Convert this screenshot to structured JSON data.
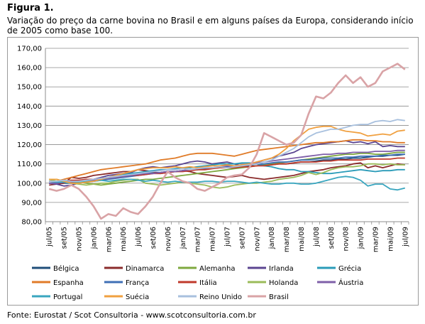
{
  "figure_label": "Figura 1.",
  "caption": "Variação do preço da carne bovina no Brasil e em alguns países da Europa, considerando início de 2005 como base 100.",
  "source": "Fonte: Eurostat / Scot Consultoria - www.scotconsultoria.com.br",
  "chart_data": {
    "type": "line",
    "title": "",
    "xlabel": "",
    "ylabel": "",
    "ylim": [
      80,
      170
    ],
    "y_ticks": [
      "80,00",
      "90,00",
      "100,00",
      "110,00",
      "120,00",
      "130,00",
      "140,00",
      "150,00",
      "160,00",
      "170,00"
    ],
    "x": [
      "jul/05",
      "ago/05",
      "set/05",
      "out/05",
      "nov/05",
      "dez/05",
      "jan/06",
      "fev/06",
      "mar/06",
      "abr/06",
      "mai/06",
      "jun/06",
      "jul/06",
      "ago/06",
      "set/06",
      "out/06",
      "nov/06",
      "dez/06",
      "jan/07",
      "fev/07",
      "mar/07",
      "abr/07",
      "mai/07",
      "jun/07",
      "jul/07",
      "ago/07",
      "set/07",
      "out/07",
      "nov/07",
      "dez/07",
      "jan/08",
      "fev/08",
      "mar/08",
      "abr/08",
      "mai/08",
      "jun/08",
      "jul/08",
      "ago/08",
      "set/08",
      "out/08",
      "nov/08",
      "dez/08",
      "jan/09",
      "fev/09",
      "mar/09",
      "abr/09",
      "mai/09",
      "jun/09",
      "jul/09"
    ],
    "x_tick_labels": [
      "jul/05",
      "set/05",
      "nov/05",
      "jan/06",
      "mar/06",
      "mai/06",
      "jul/06",
      "set/06",
      "nov/06",
      "jan/07",
      "mar/07",
      "mai/07",
      "jul/07",
      "set/07",
      "nov/07",
      "jan/08",
      "mar/08",
      "mai/08",
      "jul/08",
      "set/08",
      "nov/08",
      "jan/09",
      "mar/09",
      "mai/09",
      "jul/09"
    ],
    "grid": true,
    "legend_position": "bottom",
    "series": [
      {
        "name": "Bélgica",
        "color": "#1f4e79",
        "values": [
          100,
          100,
          100,
          100,
          100.5,
          101,
          101.5,
          102,
          102.5,
          103,
          103.5,
          104,
          104.5,
          105,
          105.5,
          105.5,
          106,
          106,
          106.5,
          107,
          107,
          107.5,
          108,
          108,
          108,
          108.5,
          108.5,
          109,
          109,
          109.5,
          109.5,
          110,
          110,
          110.5,
          111,
          111,
          111.5,
          112,
          112,
          112.5,
          112.5,
          113,
          113,
          113.5,
          114,
          114,
          114.5,
          114.5,
          115
        ]
      },
      {
        "name": "Dinamarca",
        "color": "#8b2c2c",
        "values": [
          99,
          99.5,
          100,
          103,
          102.5,
          103,
          104,
          104.5,
          105,
          105.5,
          106,
          106,
          107,
          106.5,
          106,
          105,
          105.5,
          106,
          106.5,
          106,
          105,
          104.5,
          104,
          103.5,
          103,
          103.5,
          104,
          103,
          102.5,
          102,
          102.5,
          103,
          103.5,
          104,
          105,
          106,
          106.5,
          107,
          108,
          108.5,
          109,
          110,
          110.5,
          108,
          109,
          108,
          109,
          110,
          109.5
        ]
      },
      {
        "name": "Alemanha",
        "color": "#7ea83f",
        "values": [
          102,
          102,
          101,
          101,
          100.5,
          100,
          99.5,
          99,
          99.5,
          100,
          100.5,
          101,
          101.5,
          102,
          102,
          102.5,
          103,
          103.5,
          104,
          104.5,
          105,
          105.5,
          106,
          106.5,
          107,
          107.5,
          108,
          108.5,
          109,
          109.5,
          110,
          110.5,
          111,
          111.5,
          112,
          112.5,
          113,
          113.5,
          114,
          114.5,
          115,
          115,
          115.5,
          115.5,
          115,
          115,
          115.5,
          116,
          116
        ]
      },
      {
        "name": "Irlanda",
        "color": "#5b4591",
        "values": [
          100,
          99.5,
          98.5,
          99,
          100,
          101,
          102,
          103,
          104,
          104.5,
          105,
          105.5,
          107,
          108,
          108.5,
          108,
          108.5,
          109,
          110,
          111,
          111.5,
          111,
          110,
          110.5,
          111,
          110,
          109,
          110,
          111,
          112,
          113,
          114,
          115,
          116,
          118,
          119,
          120,
          120.5,
          121,
          121.5,
          122,
          121,
          121.5,
          120.5,
          121.5,
          119,
          119.5,
          119,
          119
        ]
      },
      {
        "name": "Grécia",
        "color": "#2a9bb8",
        "values": [
          101,
          101,
          101.5,
          101,
          101,
          101.5,
          102,
          102.5,
          103,
          104,
          104.5,
          105,
          105.5,
          106,
          106.5,
          107,
          107,
          107.5,
          108,
          108,
          108.5,
          109,
          109.5,
          110,
          110,
          110,
          110.5,
          110.5,
          110,
          109,
          108.5,
          107.5,
          107,
          107,
          106,
          106,
          105.5,
          105,
          105,
          105.5,
          106,
          106.5,
          107,
          106.5,
          106,
          106.5,
          106.5,
          107,
          107
        ]
      },
      {
        "name": "Espanha",
        "color": "#e07b28",
        "values": [
          101,
          101,
          102,
          103,
          104,
          105,
          106,
          107,
          107.5,
          108,
          108.5,
          109,
          109.5,
          110,
          111,
          112,
          112.5,
          113,
          114,
          115,
          115.5,
          115.5,
          115.5,
          115,
          114.5,
          114,
          115,
          116,
          117,
          117.5,
          118,
          118.5,
          119,
          119.5,
          120,
          120.5,
          121,
          121,
          121.5,
          121.5,
          122,
          122.5,
          122.5,
          122,
          122,
          121.5,
          121.5,
          121,
          121
        ]
      },
      {
        "name": "França",
        "color": "#3f6fb5",
        "values": [
          100,
          100,
          100.5,
          100,
          100,
          100.5,
          101,
          101.5,
          102,
          102.5,
          103,
          103.5,
          104,
          104.5,
          105,
          105.5,
          106,
          106,
          106.5,
          107,
          107,
          107.5,
          108,
          108,
          108.5,
          109,
          109,
          109.5,
          110,
          110,
          110.5,
          111,
          111,
          111.5,
          112,
          112,
          112.5,
          113,
          113,
          113,
          113.5,
          113.5,
          114,
          114,
          114,
          114.5,
          114.5,
          115,
          115
        ]
      },
      {
        "name": "Itália",
        "color": "#c0392b",
        "values": [
          101,
          101,
          101,
          101.5,
          101.5,
          102,
          102,
          102.5,
          103,
          103,
          103.5,
          104,
          104,
          104.5,
          105,
          105,
          105.5,
          106,
          106,
          106.5,
          107,
          107,
          107.5,
          108,
          108,
          108,
          108.5,
          108.5,
          109,
          109,
          109.5,
          110,
          110,
          110.5,
          111,
          111,
          111,
          111.5,
          111.5,
          112,
          112,
          112,
          112,
          112.5,
          112.5,
          112.5,
          112.5,
          113,
          113
        ]
      },
      {
        "name": "Holanda",
        "color": "#9bbb59",
        "values": [
          102,
          101,
          100.5,
          100,
          99.5,
          99,
          99.5,
          100,
          100,
          101,
          101.5,
          102,
          102,
          100,
          99.5,
          99,
          99.5,
          100,
          100.5,
          100,
          99.5,
          99,
          98,
          97.5,
          98,
          99,
          99.5,
          100,
          100,
          100.5,
          101,
          102,
          102.5,
          103,
          104,
          105.5,
          104.5,
          105.5,
          107,
          108,
          108.5,
          108.5,
          109,
          110,
          110,
          109.5,
          110,
          109.5,
          109.5
        ]
      },
      {
        "name": "Áustria",
        "color": "#7f5fa8",
        "values": [
          100,
          100,
          100.5,
          100.5,
          101,
          101,
          101.5,
          102,
          102.5,
          103,
          103.5,
          104,
          104.5,
          105,
          105,
          105.5,
          106,
          106,
          106.5,
          107,
          107.5,
          108,
          108,
          108.5,
          109,
          109,
          109.5,
          110,
          110.5,
          111,
          111.5,
          112,
          112.5,
          113,
          113.5,
          114,
          114.5,
          115,
          115,
          115.5,
          115.5,
          116,
          116,
          116,
          116.5,
          116.5,
          116.5,
          117,
          117
        ]
      },
      {
        "name": "Portugal",
        "color": "#3aa6bf",
        "values": [
          101,
          100.5,
          100.5,
          100,
          100.5,
          101,
          101,
          101.5,
          101,
          101.5,
          102,
          102,
          101.5,
          101,
          101.5,
          101,
          100.5,
          101,
          100.5,
          100.5,
          100.5,
          101,
          101,
          100.5,
          101,
          101,
          100.5,
          100,
          100.5,
          100,
          99.5,
          99.5,
          100,
          100,
          99.5,
          99.5,
          100,
          101,
          102,
          103,
          103.5,
          103,
          101.5,
          98.5,
          99.5,
          99.5,
          97,
          96.5,
          97.5
        ]
      },
      {
        "name": "Suécia",
        "color": "#f0a040",
        "values": [
          102,
          102,
          101,
          100,
          100,
          100.5,
          101,
          102,
          103,
          104,
          105,
          106,
          107,
          107.5,
          108,
          108,
          108,
          108.5,
          108,
          108.5,
          108,
          108.5,
          109,
          109,
          109.5,
          109,
          109.5,
          110,
          111,
          112,
          113,
          115,
          118,
          122,
          125,
          128,
          129,
          129.5,
          129.5,
          128,
          127,
          126.5,
          126,
          124.5,
          125,
          125.5,
          125,
          127,
          127.5
        ]
      },
      {
        "name": "Reino Unido",
        "color": "#a8c0de",
        "values": [
          101,
          101,
          101.5,
          101,
          101,
          101.5,
          102,
          102.5,
          103,
          103.5,
          104,
          104.5,
          105,
          105.5,
          106,
          106.5,
          107,
          107,
          107.5,
          107,
          107.5,
          108,
          108,
          108.5,
          108,
          108.5,
          109,
          109.5,
          110,
          111,
          112,
          114,
          116,
          118,
          121,
          124,
          126,
          127,
          128,
          128,
          129,
          130,
          130.5,
          130.5,
          132,
          132.5,
          132,
          133,
          132.5
        ]
      },
      {
        "name": "Brasil",
        "color": "#d9a3a6",
        "values": [
          97,
          96,
          97,
          99,
          97,
          93,
          88,
          81.5,
          84,
          83,
          87,
          85,
          84,
          88,
          93,
          100,
          106,
          103,
          101,
          100,
          97,
          96,
          98,
          100,
          103,
          104,
          104.5,
          108,
          115,
          126,
          124,
          122,
          120,
          121,
          125,
          136,
          145,
          144,
          147,
          152,
          156,
          152,
          155,
          150,
          152,
          158,
          160,
          162,
          159
        ]
      }
    ]
  }
}
